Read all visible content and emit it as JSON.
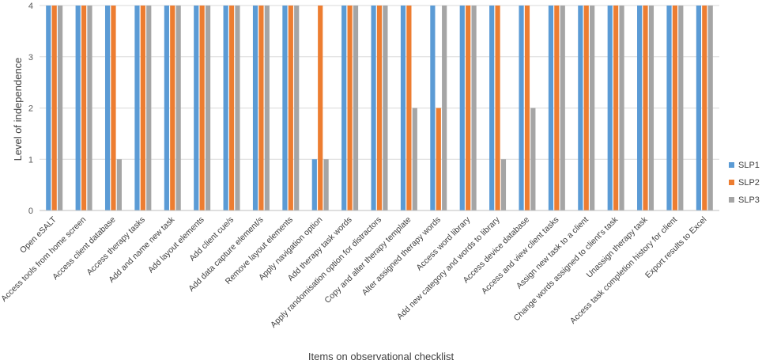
{
  "chart_data": {
    "type": "bar",
    "title": "",
    "xlabel": "Items on observational checklist",
    "ylabel": "Level of independence",
    "ylim": [
      0,
      4
    ],
    "yticks": [
      0,
      1,
      2,
      3,
      4
    ],
    "grid": true,
    "legend_position": "right",
    "categories": [
      "Open eSALT",
      "Access tools from home screen",
      "Access client database",
      "Access therapy tasks",
      "Add and name new task",
      "Add layout elements",
      "Add client cue/s",
      "Add data capture element/s",
      "Remove layout elements",
      "Apply navigation option",
      "Add therapy task words",
      "Apply randomisation option for distractors",
      "Copy and alter therapy template",
      "Alter assigned therapy words",
      "Access word library",
      "Add new category and words to library",
      "Access device database",
      "Access and view client tasks",
      "Assign new task to a client",
      "Change words assigned to client's task",
      "Unassign therapy task",
      "Access task completion history for client",
      "Export results to Excel"
    ],
    "series": [
      {
        "name": "SLP1",
        "color": "#5B9BD5",
        "values": [
          4,
          4,
          4,
          4,
          4,
          4,
          4,
          4,
          4,
          1,
          4,
          4,
          4,
          4,
          4,
          4,
          4,
          4,
          4,
          4,
          4,
          4,
          4
        ]
      },
      {
        "name": "SLP2",
        "color": "#ED7D31",
        "values": [
          4,
          4,
          4,
          4,
          4,
          4,
          4,
          4,
          4,
          4,
          4,
          4,
          4,
          2,
          4,
          4,
          4,
          4,
          4,
          4,
          4,
          4,
          4
        ]
      },
      {
        "name": "SLP3",
        "color": "#A5A5A5",
        "values": [
          4,
          4,
          1,
          4,
          4,
          4,
          4,
          4,
          4,
          1,
          4,
          4,
          2,
          4,
          4,
          1,
          2,
          4,
          4,
          4,
          4,
          4,
          4
        ]
      }
    ]
  }
}
